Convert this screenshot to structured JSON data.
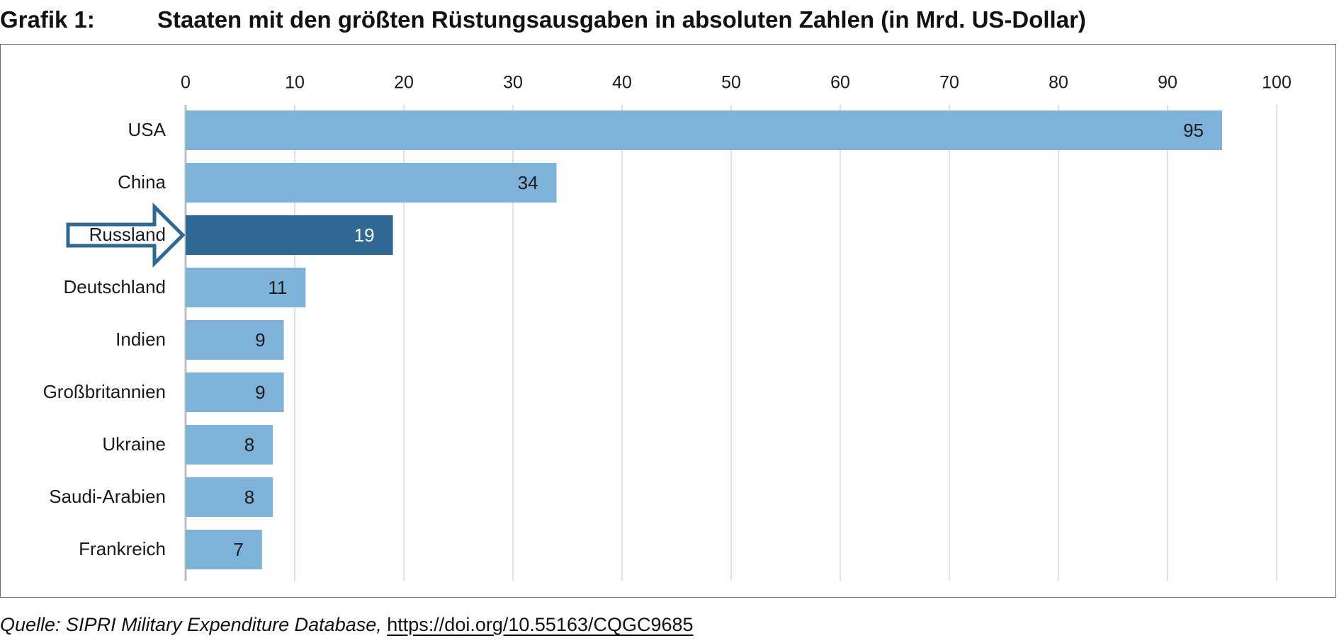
{
  "header": {
    "label": "Grafik 1:",
    "title": "Staaten mit den größten Rüstungsausgaben in absoluten Zahlen (in Mrd. US-Dollar)"
  },
  "source": {
    "text": "Quelle: SIPRI Military Expenditure Database,",
    "link": "https://doi.org/10.55163/CQGC9685"
  },
  "colors": {
    "bar": "#7fb2d9",
    "highlight_bar": "#2e6893",
    "arrow": "#2e6893",
    "grid": "#d9d9d9",
    "axis": "#bfbfbf"
  },
  "chart_data": {
    "type": "bar",
    "orientation": "horizontal",
    "categories": [
      "USA",
      "China",
      "Russland",
      "Deutschland",
      "Indien",
      "Großbritannien",
      "Ukraine",
      "Saudi-Arabien",
      "Frankreich"
    ],
    "values": [
      95,
      34,
      19,
      11,
      9,
      9,
      8,
      8,
      7
    ],
    "value_labels": [
      "95",
      "34",
      "19",
      "11",
      "9",
      "9",
      "8",
      "8",
      "7"
    ],
    "highlight": "Russland",
    "title": "Staaten mit den größten Rüstungsausgaben in absoluten Zahlen (in Mrd. US-Dollar)",
    "xlim": [
      0,
      100
    ],
    "xticks": [
      0,
      10,
      20,
      30,
      40,
      50,
      60,
      70,
      80,
      90,
      100
    ],
    "xtick_labels": [
      "0",
      "10",
      "20",
      "30",
      "40",
      "50",
      "60",
      "70",
      "80",
      "90",
      "100"
    ],
    "x_axis_position": "top",
    "grid": true,
    "legend": "none"
  }
}
